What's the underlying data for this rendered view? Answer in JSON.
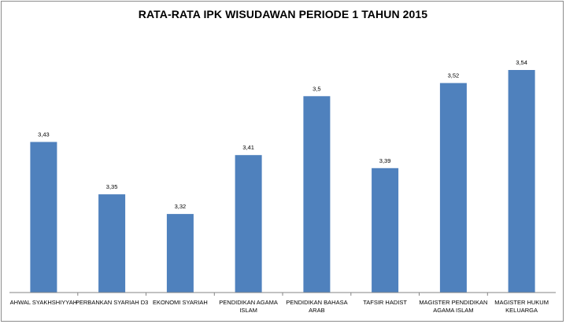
{
  "chart_data": {
    "type": "bar",
    "title": "RATA-RATA IPK WISUDAWAN PERIODE 1 TAHUN 2015",
    "categories": [
      [
        "AHWAL SYAKHSHIYYAH"
      ],
      [
        "PERBANKAN SYARIAH D3"
      ],
      [
        "EKONOMI SYARIAH"
      ],
      [
        "PENDIDIKAN AGAMA",
        "ISLAM"
      ],
      [
        "PENDIDIKAN BAHASA",
        "ARAB"
      ],
      [
        "TAFSIR HADIST"
      ],
      [
        "MAGISTER PENDIDIKAN",
        "AGAMA ISLAM"
      ],
      [
        "MAGISTER HUKUM",
        "KELUARGA"
      ]
    ],
    "values": [
      3.43,
      3.35,
      3.32,
      3.41,
      3.5,
      3.39,
      3.52,
      3.54
    ],
    "value_labels": [
      "3,43",
      "3,35",
      "3,32",
      "3,41",
      "3,5",
      "3,39",
      "3,52",
      "3,54"
    ],
    "ylim": [
      3.2,
      3.6
    ],
    "bar_color": "#4f81bd",
    "axis_color": "#868686",
    "xlabel": "",
    "ylabel": "",
    "grid": false,
    "legend": "none"
  }
}
